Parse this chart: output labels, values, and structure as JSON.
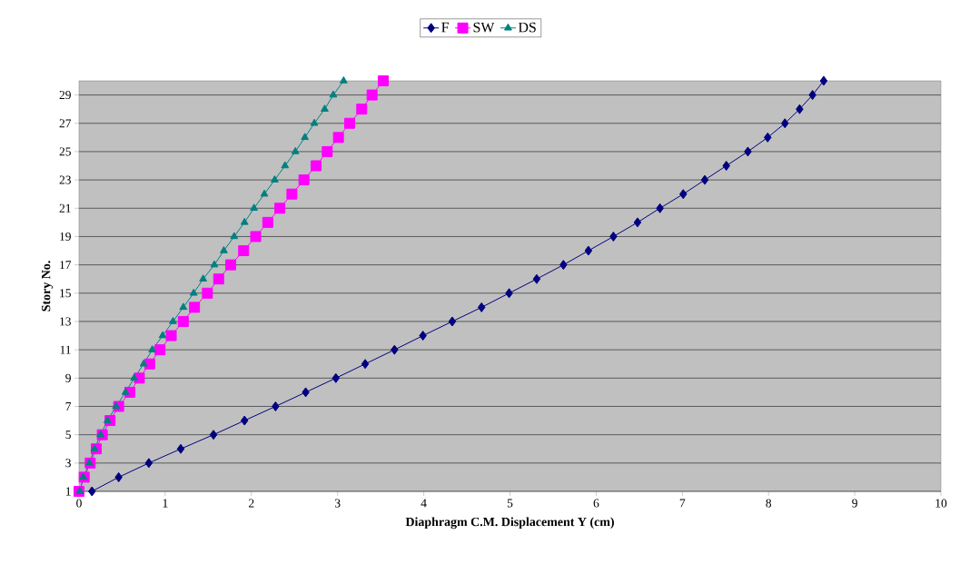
{
  "chart_data": {
    "type": "line",
    "xlabel": "Diaphragm C.M. Displacement Y (cm)",
    "ylabel": "Story No.",
    "xlim": [
      0,
      10
    ],
    "xticks": [
      0,
      1,
      2,
      3,
      4,
      5,
      6,
      7,
      8,
      9,
      10
    ],
    "ylim": [
      1,
      30
    ],
    "yticks": [
      1,
      3,
      5,
      7,
      9,
      11,
      13,
      15,
      17,
      19,
      21,
      23,
      25,
      27,
      29
    ],
    "grid": "y",
    "legend": "top",
    "line_style": "solid",
    "series": [
      {
        "name": "F",
        "color": "#000080",
        "marker": "diamond",
        "x": [
          0.15,
          0.46,
          0.81,
          1.18,
          1.56,
          1.92,
          2.28,
          2.63,
          2.98,
          3.32,
          3.66,
          3.99,
          4.33,
          4.67,
          4.99,
          5.31,
          5.62,
          5.91,
          6.2,
          6.48,
          6.74,
          7.01,
          7.26,
          7.51,
          7.76,
          7.99,
          8.19,
          8.36,
          8.51,
          8.64
        ],
        "values": [
          1,
          2,
          3,
          4,
          5,
          6,
          7,
          8,
          9,
          10,
          11,
          12,
          13,
          14,
          15,
          16,
          17,
          18,
          19,
          20,
          21,
          22,
          23,
          24,
          25,
          26,
          27,
          28,
          29,
          30
        ]
      },
      {
        "name": "SW",
        "color": "#ff00ff",
        "marker": "square",
        "x": [
          0.0,
          0.06,
          0.13,
          0.2,
          0.27,
          0.36,
          0.46,
          0.59,
          0.7,
          0.82,
          0.94,
          1.07,
          1.21,
          1.34,
          1.49,
          1.62,
          1.76,
          1.91,
          2.05,
          2.19,
          2.33,
          2.47,
          2.61,
          2.75,
          2.88,
          3.01,
          3.14,
          3.28,
          3.4,
          3.53
        ],
        "values": [
          1,
          2,
          3,
          4,
          5,
          6,
          7,
          8,
          9,
          10,
          11,
          12,
          13,
          14,
          15,
          16,
          17,
          18,
          19,
          20,
          21,
          22,
          23,
          24,
          25,
          26,
          27,
          28,
          29,
          30
        ]
      },
      {
        "name": "DS",
        "color": "#008080",
        "marker": "triangle",
        "x": [
          0.01,
          0.05,
          0.12,
          0.18,
          0.25,
          0.33,
          0.43,
          0.54,
          0.64,
          0.75,
          0.85,
          0.97,
          1.09,
          1.21,
          1.33,
          1.44,
          1.57,
          1.68,
          1.8,
          1.92,
          2.03,
          2.15,
          2.27,
          2.39,
          2.51,
          2.62,
          2.73,
          2.85,
          2.95,
          3.07
        ],
        "values": [
          1,
          2,
          3,
          4,
          5,
          6,
          7,
          8,
          9,
          10,
          11,
          12,
          13,
          14,
          15,
          16,
          17,
          18,
          19,
          20,
          21,
          22,
          23,
          24,
          25,
          26,
          27,
          28,
          29,
          30
        ]
      }
    ]
  }
}
